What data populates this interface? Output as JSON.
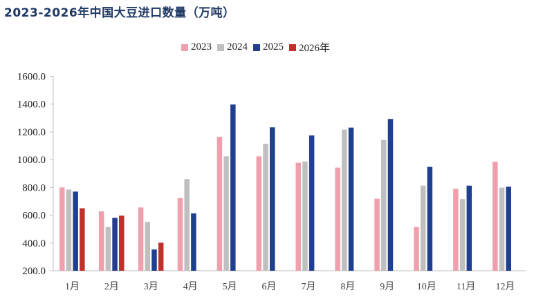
{
  "title": "2023-2026年中国大豆进口数量（万吨）",
  "legend": [
    {
      "label": "2023",
      "color": "#F0A0AC"
    },
    {
      "label": "2024",
      "color": "#BFBFBF"
    },
    {
      "label": "2025",
      "color": "#1F3F8F"
    },
    {
      "label": "2026年",
      "color": "#C0312B"
    }
  ],
  "chart_data": {
    "type": "bar",
    "title": "2023-2026年中国大豆进口数量（万吨）",
    "xlabel": "",
    "ylabel": "",
    "ylim": [
      200,
      1600
    ],
    "yticks": [
      "200.0",
      "400.0",
      "600.0",
      "800.0",
      "1000.0",
      "1200.0",
      "1400.0",
      "1600.0"
    ],
    "grid": false,
    "legend_position": "top",
    "categories": [
      "1月",
      "2月",
      "3月",
      "4月",
      "5月",
      "6月",
      "7月",
      "8月",
      "9月",
      "10月",
      "11月",
      "12月"
    ],
    "series": [
      {
        "name": "2023",
        "color": "#F0A0AC",
        "values": [
          800,
          628,
          656,
          724,
          1165,
          1024,
          978,
          943,
          719,
          515,
          790,
          985
        ]
      },
      {
        "name": "2024",
        "color": "#BFBFBF",
        "values": [
          785,
          515,
          552,
          860,
          1024,
          1114,
          986,
          1216,
          1142,
          813,
          716,
          799
        ]
      },
      {
        "name": "2025",
        "color": "#1F3F8F",
        "values": [
          770,
          581,
          353,
          613,
          1397,
          1233,
          1174,
          1231,
          1293,
          948,
          813,
          805
        ]
      },
      {
        "name": "2026年",
        "color": "#C0312B",
        "values": [
          650,
          597,
          402,
          null,
          null,
          null,
          null,
          null,
          null,
          null,
          null,
          null
        ]
      }
    ]
  }
}
